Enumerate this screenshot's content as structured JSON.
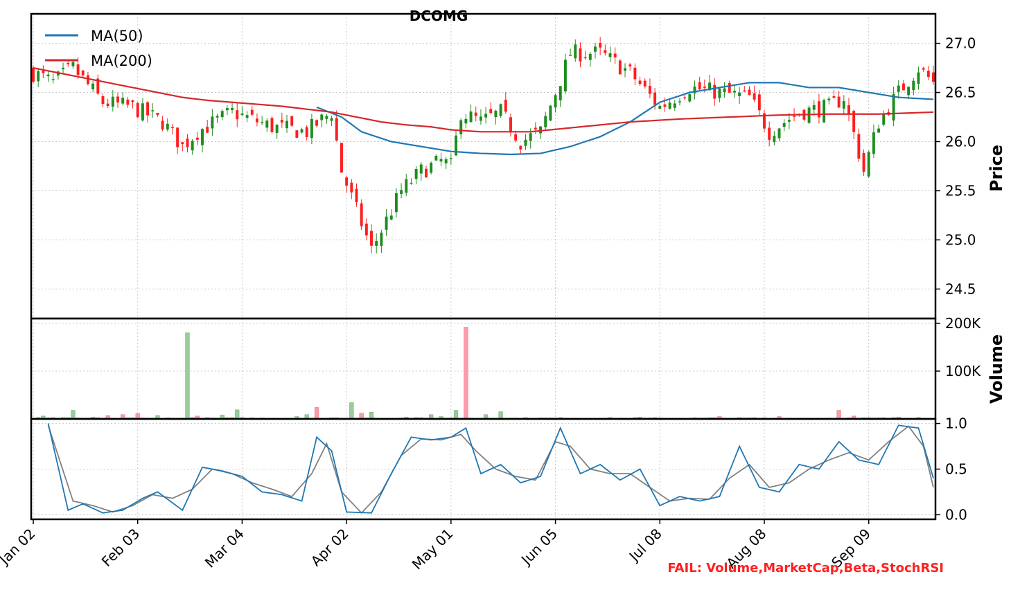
{
  "chart_data": {
    "type": "candlestick",
    "title": "DCOMG",
    "status_note": "FAIL: Volume,MarketCap,Beta,StochRSI",
    "colors": {
      "up": "#1e8c1e",
      "down": "#ff1e1e",
      "ma50": "#1f77b4",
      "ma200": "#d62728",
      "stoch_k": "#1f77b4",
      "stoch_d": "#808080",
      "vol_up": "#99cc99",
      "vol_down": "#ff9aa8"
    },
    "x_tick_labels": [
      "Jan 02",
      "Feb 03",
      "Mar 04",
      "Apr 02",
      "May 01",
      "Jun 05",
      "Jul 08",
      "Aug 08",
      "Sep 09"
    ],
    "x_tick_index": [
      0,
      21,
      42,
      63,
      84,
      105,
      126,
      147,
      168
    ],
    "n_days": 182,
    "legend": [
      "MA(50)",
      "MA(200)"
    ],
    "price_panel": {
      "ylabel": "Price",
      "ylim": [
        24.2,
        27.3
      ],
      "yticks": [
        24.5,
        25.0,
        25.5,
        26.0,
        26.5,
        27.0
      ],
      "ytick_labels": [
        "24.5",
        "25.0",
        "25.5",
        "26.0",
        "26.5",
        "27.0"
      ],
      "close_key": [
        [
          0,
          26.7
        ],
        [
          4,
          26.6
        ],
        [
          8,
          26.75
        ],
        [
          14,
          26.4
        ],
        [
          20,
          26.35
        ],
        [
          26,
          26.2
        ],
        [
          30,
          25.95
        ],
        [
          33,
          26.1
        ],
        [
          40,
          26.3
        ],
        [
          48,
          26.15
        ],
        [
          55,
          26.1
        ],
        [
          60,
          26.3
        ],
        [
          62,
          25.7
        ],
        [
          65,
          25.3
        ],
        [
          68,
          24.9
        ],
        [
          71,
          25.2
        ],
        [
          74,
          25.5
        ],
        [
          78,
          25.7
        ],
        [
          82,
          25.8
        ],
        [
          84,
          25.75
        ],
        [
          86,
          26.3
        ],
        [
          90,
          26.2
        ],
        [
          94,
          26.3
        ],
        [
          98,
          26.0
        ],
        [
          102,
          26.1
        ],
        [
          105,
          26.5
        ],
        [
          108,
          26.9
        ],
        [
          114,
          26.9
        ],
        [
          120,
          26.7
        ],
        [
          126,
          26.35
        ],
        [
          132,
          26.55
        ],
        [
          138,
          26.5
        ],
        [
          144,
          26.45
        ],
        [
          148,
          26.1
        ],
        [
          154,
          26.3
        ],
        [
          160,
          26.35
        ],
        [
          163,
          26.45
        ],
        [
          167,
          25.7
        ],
        [
          170,
          26.2
        ],
        [
          174,
          26.5
        ],
        [
          178,
          26.75
        ],
        [
          181,
          26.6
        ]
      ],
      "ma50_key": [
        [
          57,
          26.35
        ],
        [
          62,
          26.25
        ],
        [
          66,
          26.1
        ],
        [
          72,
          26.0
        ],
        [
          78,
          25.95
        ],
        [
          84,
          25.9
        ],
        [
          90,
          25.88
        ],
        [
          96,
          25.87
        ],
        [
          102,
          25.88
        ],
        [
          108,
          25.95
        ],
        [
          114,
          26.05
        ],
        [
          120,
          26.2
        ],
        [
          126,
          26.4
        ],
        [
          132,
          26.5
        ],
        [
          138,
          26.55
        ],
        [
          144,
          26.6
        ],
        [
          150,
          26.6
        ],
        [
          156,
          26.55
        ],
        [
          162,
          26.55
        ],
        [
          168,
          26.5
        ],
        [
          174,
          26.45
        ],
        [
          181,
          26.43
        ]
      ],
      "ma200_key": [
        [
          0,
          26.75
        ],
        [
          5,
          26.7
        ],
        [
          10,
          26.65
        ],
        [
          15,
          26.6
        ],
        [
          20,
          26.55
        ],
        [
          25,
          26.5
        ],
        [
          30,
          26.45
        ],
        [
          35,
          26.42
        ],
        [
          40,
          26.4
        ],
        [
          45,
          26.38
        ],
        [
          50,
          26.36
        ],
        [
          55,
          26.33
        ],
        [
          60,
          26.3
        ],
        [
          65,
          26.25
        ],
        [
          70,
          26.2
        ],
        [
          75,
          26.17
        ],
        [
          80,
          26.15
        ],
        [
          84,
          26.12
        ],
        [
          90,
          26.1
        ],
        [
          100,
          26.1
        ],
        [
          110,
          26.15
        ],
        [
          120,
          26.2
        ],
        [
          130,
          26.23
        ],
        [
          140,
          26.25
        ],
        [
          150,
          26.27
        ],
        [
          160,
          26.28
        ],
        [
          170,
          26.28
        ],
        [
          181,
          26.3
        ]
      ]
    },
    "volume_panel": {
      "ylabel": "Volume",
      "ylim": [
        0,
        210000
      ],
      "yticks": [
        100000,
        200000
      ],
      "ytick_labels": [
        "100K",
        "200K"
      ],
      "spikes": [
        [
          31,
          180000
        ],
        [
          87,
          192000
        ]
      ],
      "small_bars": [
        [
          2,
          6000
        ],
        [
          8,
          18000
        ],
        [
          12,
          4000
        ],
        [
          15,
          7000
        ],
        [
          18,
          9000
        ],
        [
          21,
          11000
        ],
        [
          25,
          7000
        ],
        [
          33,
          6000
        ],
        [
          38,
          8000
        ],
        [
          41,
          19000
        ],
        [
          53,
          5000
        ],
        [
          55,
          9000
        ],
        [
          57,
          24000
        ],
        [
          64,
          34000
        ],
        [
          66,
          12000
        ],
        [
          68,
          14000
        ],
        [
          75,
          4000
        ],
        [
          80,
          9000
        ],
        [
          82,
          5000
        ],
        [
          85,
          18000
        ],
        [
          91,
          9000
        ],
        [
          94,
          15000
        ],
        [
          122,
          4000
        ],
        [
          138,
          5000
        ],
        [
          150,
          5000
        ],
        [
          162,
          18000
        ],
        [
          165,
          6000
        ],
        [
          174,
          4000
        ],
        [
          178,
          3000
        ]
      ]
    },
    "stoch_panel": {
      "ylim": [
        -0.05,
        1.05
      ],
      "yticks": [
        0.0,
        0.5,
        1.0
      ],
      "ytick_labels": [
        "0.0",
        "0.5",
        "1.0"
      ],
      "k_key": [
        [
          3,
          1.0
        ],
        [
          7,
          0.05
        ],
        [
          10,
          0.12
        ],
        [
          14,
          0.02
        ],
        [
          18,
          0.05
        ],
        [
          22,
          0.18
        ],
        [
          25,
          0.25
        ],
        [
          30,
          0.05
        ],
        [
          34,
          0.52
        ],
        [
          38,
          0.48
        ],
        [
          42,
          0.42
        ],
        [
          46,
          0.25
        ],
        [
          50,
          0.22
        ],
        [
          54,
          0.15
        ],
        [
          57,
          0.85
        ],
        [
          60,
          0.7
        ],
        [
          63,
          0.03
        ],
        [
          68,
          0.02
        ],
        [
          72,
          0.45
        ],
        [
          76,
          0.85
        ],
        [
          80,
          0.82
        ],
        [
          84,
          0.85
        ],
        [
          87,
          0.95
        ],
        [
          90,
          0.45
        ],
        [
          94,
          0.55
        ],
        [
          98,
          0.35
        ],
        [
          102,
          0.42
        ],
        [
          106,
          0.95
        ],
        [
          110,
          0.45
        ],
        [
          114,
          0.55
        ],
        [
          118,
          0.38
        ],
        [
          122,
          0.5
        ],
        [
          126,
          0.1
        ],
        [
          130,
          0.2
        ],
        [
          134,
          0.15
        ],
        [
          138,
          0.2
        ],
        [
          142,
          0.75
        ],
        [
          146,
          0.3
        ],
        [
          150,
          0.25
        ],
        [
          154,
          0.55
        ],
        [
          158,
          0.5
        ],
        [
          162,
          0.8
        ],
        [
          166,
          0.6
        ],
        [
          170,
          0.55
        ],
        [
          174,
          0.98
        ],
        [
          178,
          0.95
        ],
        [
          181,
          0.4
        ]
      ],
      "d_key": [
        [
          3,
          0.98
        ],
        [
          8,
          0.15
        ],
        [
          12,
          0.1
        ],
        [
          16,
          0.03
        ],
        [
          20,
          0.1
        ],
        [
          24,
          0.22
        ],
        [
          28,
          0.18
        ],
        [
          32,
          0.28
        ],
        [
          36,
          0.5
        ],
        [
          40,
          0.45
        ],
        [
          44,
          0.35
        ],
        [
          48,
          0.28
        ],
        [
          52,
          0.2
        ],
        [
          56,
          0.45
        ],
        [
          59,
          0.78
        ],
        [
          62,
          0.25
        ],
        [
          66,
          0.02
        ],
        [
          70,
          0.25
        ],
        [
          74,
          0.65
        ],
        [
          78,
          0.83
        ],
        [
          82,
          0.82
        ],
        [
          86,
          0.88
        ],
        [
          89,
          0.7
        ],
        [
          93,
          0.5
        ],
        [
          97,
          0.42
        ],
        [
          101,
          0.38
        ],
        [
          105,
          0.8
        ],
        [
          108,
          0.75
        ],
        [
          112,
          0.5
        ],
        [
          116,
          0.45
        ],
        [
          120,
          0.45
        ],
        [
          124,
          0.3
        ],
        [
          128,
          0.15
        ],
        [
          132,
          0.18
        ],
        [
          136,
          0.17
        ],
        [
          140,
          0.4
        ],
        [
          144,
          0.55
        ],
        [
          148,
          0.3
        ],
        [
          152,
          0.35
        ],
        [
          156,
          0.5
        ],
        [
          160,
          0.6
        ],
        [
          164,
          0.68
        ],
        [
          168,
          0.6
        ],
        [
          172,
          0.8
        ],
        [
          176,
          0.97
        ],
        [
          179,
          0.75
        ],
        [
          181,
          0.3
        ]
      ]
    }
  }
}
